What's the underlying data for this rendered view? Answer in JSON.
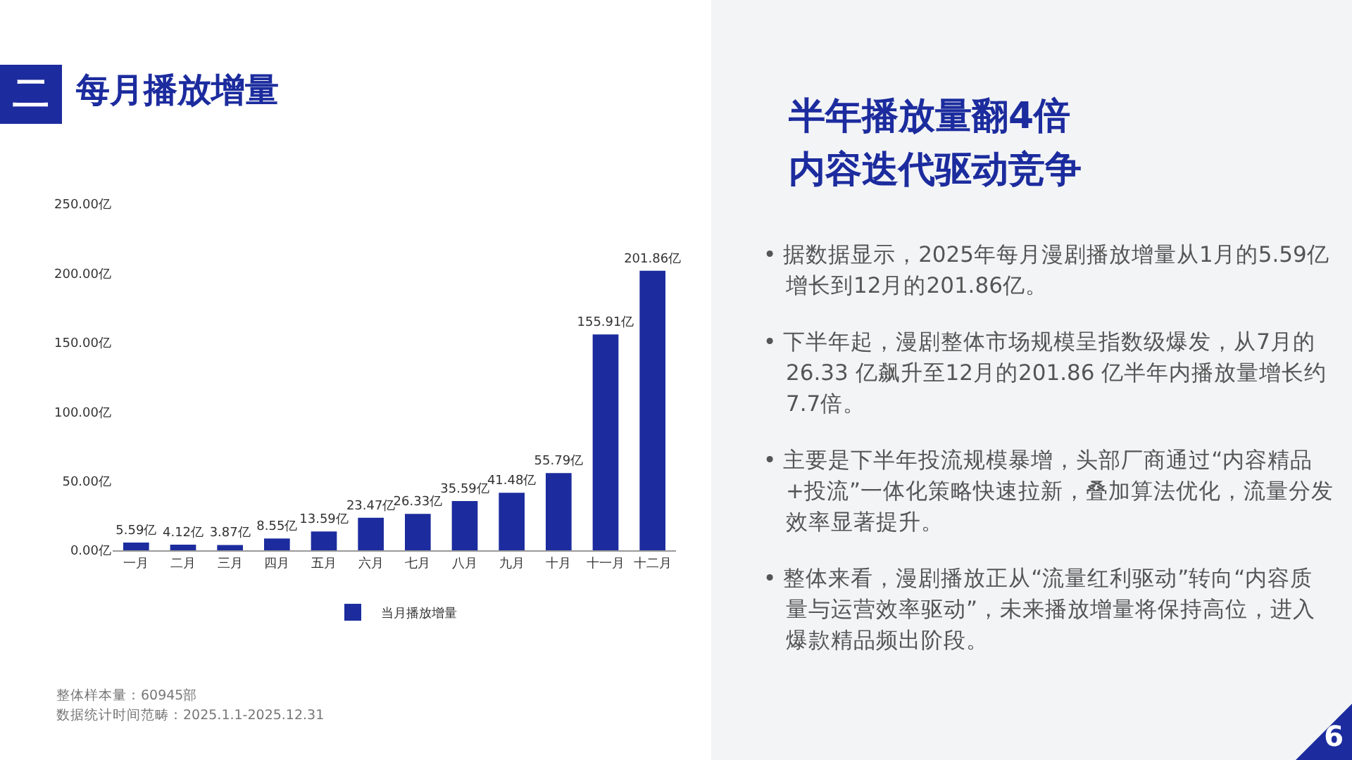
{
  "chart_data": {
    "type": "bar",
    "title": "每月播放增量",
    "categories": [
      "一月",
      "二月",
      "三月",
      "四月",
      "五月",
      "六月",
      "七月",
      "八月",
      "九月",
      "十月",
      "十一月",
      "十二月"
    ],
    "series": [
      {
        "name": "当月播放增量",
        "color": "#1c2c9e",
        "values": [
          5.59,
          4.12,
          3.87,
          8.55,
          13.59,
          23.47,
          26.33,
          35.59,
          41.48,
          55.79,
          155.91,
          201.86
        ],
        "value_labels": [
          "5.59亿",
          "4.12亿",
          "3.87亿",
          "8.55亿",
          "13.59亿",
          "23.47亿",
          "26.33亿",
          "35.59亿",
          "41.48亿",
          "55.79亿",
          "155.91亿",
          "201.86亿"
        ]
      }
    ],
    "ylim": [
      0,
      250
    ],
    "yticks": [
      {
        "value": 0,
        "label": "0.00亿"
      },
      {
        "value": 50,
        "label": "50.00亿"
      },
      {
        "value": 100,
        "label": "100.00亿"
      },
      {
        "value": 150,
        "label": "150.00亿"
      },
      {
        "value": 200,
        "label": "200.00亿"
      },
      {
        "value": 250,
        "label": "250.00亿"
      }
    ],
    "grid": false,
    "legend": "bottom",
    "annotations": [
      "二",
      "半年播放量翻4倍",
      "内容迭代驱动竞争",
      "• 据数据显示，2025年每月漫剧播放增量从1月的5.59亿增长到12月的201.86亿。",
      "• 下半年起，漫剧整体市场规模呈指数级爆发，从7月的26.33 亿飙升至12月的201.86 亿半年内播放量增长约7.7倍。",
      "• 主要是下半年投流规模暴增，头部厂商通过“内容精品+投流”一体化策略快速拉新，叠加算法优化，流量分发效率显著提升。",
      "• 整体来看，漫剧播放正从“流量红利驱动”转向“内容质量与运营效率驱动”，未来播放增量将保持高位，进入爆款精品频出阶段。",
      "整体样本量：60945部",
      "数据统计时间范畴：2025.1.1-2025.12.31",
      "6"
    ]
  }
}
